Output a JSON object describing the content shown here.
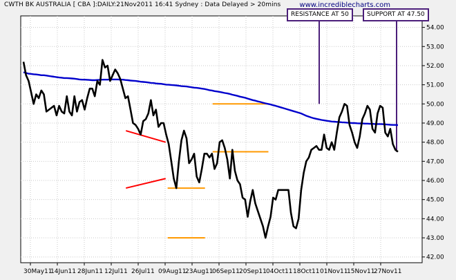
{
  "header": "CWTH BK AUSTRALIA [ CBA ]:DAILY:21Nov2011 16:41 Sydney : Data Delayed > 20mins",
  "watermark": "www.incrediblecharts.com",
  "annotations": {
    "resistance_label": "RESISTANCE AT 50",
    "support_label": "SUPPORT AT 47.50"
  },
  "chart_data": {
    "type": "line",
    "ylim": [
      41.7,
      54.6
    ],
    "y_ticks": [
      "42.00",
      "43.00",
      "44.00",
      "45.00",
      "46.00",
      "47.00",
      "48.00",
      "49.00",
      "50.00",
      "51.00",
      "52.00",
      "53.00",
      "54.00"
    ],
    "x_ticks": [
      "30May11",
      "14Jun11",
      "28Jun11",
      "12Jul11",
      "26Jul11",
      "09Aug11",
      "23Aug11",
      "06Sep11",
      "20Sep11",
      "04Oct11",
      "18Oct11",
      "01Nov11",
      "15Nov11",
      "27Nov11"
    ],
    "grid": true,
    "series": [
      {
        "values": [
          52.2,
          51.5,
          51.2,
          50.6,
          50.0,
          50.5,
          50.3,
          50.7,
          50.5,
          49.6,
          49.7,
          49.8,
          49.9,
          49.4,
          49.9,
          49.6,
          49.5,
          50.4,
          49.6,
          49.4,
          50.4,
          49.6,
          50.1,
          50.2,
          49.7,
          50.3,
          50.8,
          50.8,
          50.4,
          51.2,
          51.0,
          52.3,
          51.9,
          52.0,
          51.2,
          51.5,
          51.8,
          51.6,
          51.3,
          50.8,
          50.3,
          50.4,
          49.7,
          49.0,
          48.9,
          48.7,
          48.4,
          49.1,
          49.2,
          49.5,
          50.2,
          49.4,
          49.7,
          48.8,
          49.0,
          49.0,
          48.4,
          47.9,
          47.0,
          46.1,
          45.6,
          47.0,
          48.1,
          48.6,
          48.2,
          46.9,
          47.1,
          47.4,
          46.2,
          45.9,
          46.6,
          47.4,
          47.4,
          47.2,
          47.4,
          46.6,
          46.9,
          48.0,
          48.1,
          47.7,
          47.1,
          46.1,
          47.6,
          46.5,
          46.0,
          45.8,
          45.1,
          45.0,
          44.1,
          44.9,
          45.5,
          44.8,
          44.4,
          44.0,
          43.6,
          43.0,
          43.6,
          44.1,
          45.1,
          45.0,
          45.5,
          45.5,
          45.5,
          45.5,
          45.5,
          44.3,
          43.6,
          43.5,
          44.0,
          45.5,
          46.4,
          47.0,
          47.2,
          47.6,
          47.7,
          47.8,
          47.6,
          47.6,
          48.4,
          47.7,
          47.6,
          48.0,
          47.6,
          48.5,
          49.3,
          49.6,
          50.0,
          49.9,
          48.9,
          48.5,
          48.0,
          47.7,
          48.3,
          49.2,
          49.5,
          49.9,
          49.7,
          48.7,
          48.5,
          49.5,
          49.9,
          49.8,
          48.5,
          48.3,
          48.7,
          47.9,
          47.6,
          47.5
        ],
        "color": "#000000"
      },
      {
        "values": [
          51.65,
          51.62,
          51.58,
          51.57,
          51.55,
          51.54,
          51.52,
          51.5,
          51.5,
          51.48,
          51.46,
          51.44,
          51.42,
          51.4,
          51.38,
          51.37,
          51.35,
          51.35,
          51.34,
          51.33,
          51.32,
          51.3,
          51.28,
          51.27,
          51.27,
          51.26,
          51.25,
          51.24,
          51.24,
          51.25,
          51.26,
          51.27,
          51.27,
          51.27,
          51.28,
          51.28,
          51.28,
          51.28,
          51.27,
          51.27,
          51.25,
          51.24,
          51.22,
          51.21,
          51.2,
          51.18,
          51.16,
          51.15,
          51.14,
          51.12,
          51.1,
          51.09,
          51.07,
          51.06,
          51.05,
          51.03,
          51.01,
          51.0,
          50.99,
          50.98,
          50.97,
          50.95,
          50.93,
          50.92,
          50.91,
          50.89,
          50.87,
          50.85,
          50.84,
          50.82,
          50.8,
          50.78,
          50.75,
          50.72,
          50.7,
          50.67,
          50.65,
          50.63,
          50.6,
          50.57,
          50.55,
          50.52,
          50.48,
          50.45,
          50.42,
          50.38,
          50.35,
          50.32,
          50.28,
          50.24,
          50.2,
          50.17,
          50.13,
          50.1,
          50.06,
          50.03,
          50.0,
          49.97,
          49.93,
          49.9,
          49.86,
          49.82,
          49.78,
          49.74,
          49.7,
          49.66,
          49.62,
          49.58,
          49.54,
          49.5,
          49.44,
          49.38,
          49.33,
          49.29,
          49.25,
          49.22,
          49.19,
          49.16,
          49.14,
          49.12,
          49.1,
          49.08,
          49.07,
          49.06,
          49.05,
          49.04,
          49.03,
          49.02,
          49.01,
          49.0,
          49.0,
          48.99,
          48.98,
          48.98,
          48.97,
          48.97,
          48.96,
          48.96,
          48.95,
          48.95,
          48.95,
          48.94,
          48.93,
          48.92,
          48.91,
          48.9,
          48.9,
          48.89
        ],
        "color": "#0000cc"
      }
    ],
    "overlays": {
      "triangle_upper": [
        [
          0.262,
          48.6
        ],
        [
          0.361,
          48.0
        ]
      ],
      "triangle_lower": [
        [
          0.262,
          45.6
        ],
        [
          0.361,
          46.1
        ]
      ],
      "range_top": [
        [
          0.366,
          45.6
        ],
        [
          0.459,
          45.6
        ]
      ],
      "range_bottom": [
        [
          0.366,
          43.0
        ],
        [
          0.459,
          43.0
        ]
      ],
      "resistance": [
        [
          0.478,
          50.0
        ],
        [
          0.617,
          50.0
        ]
      ],
      "support": [
        [
          0.478,
          47.5
        ],
        [
          0.617,
          47.5
        ]
      ],
      "triangle_color": "#ff0000",
      "level_color": "#ff9900",
      "annotation_color": "#4b1e7a"
    }
  }
}
